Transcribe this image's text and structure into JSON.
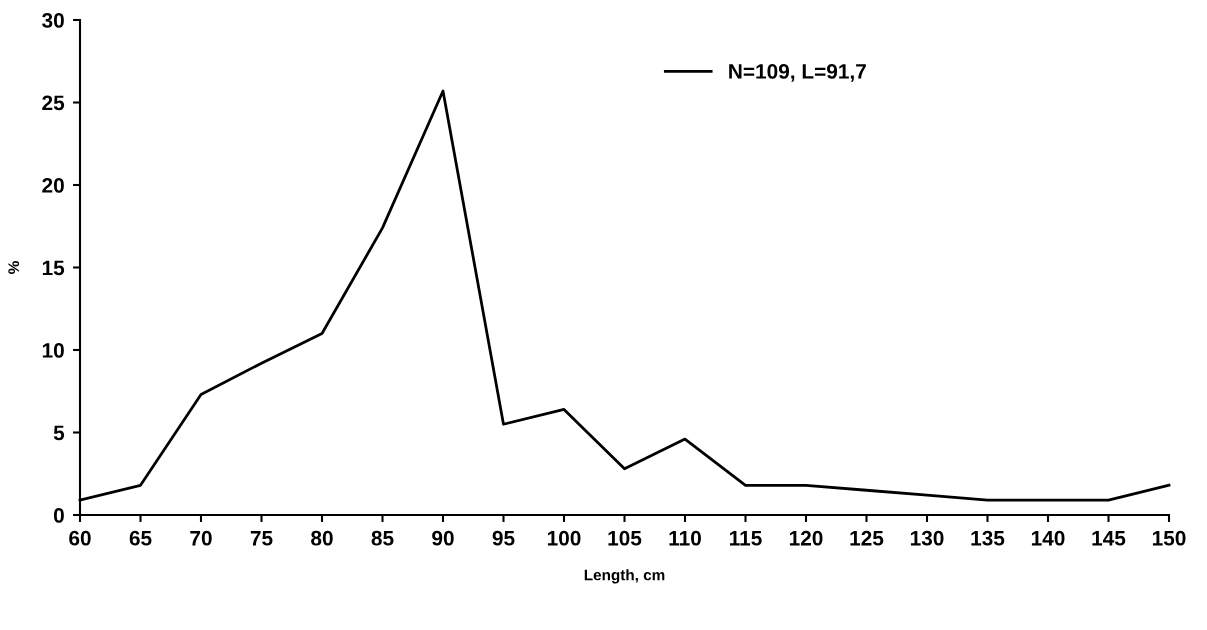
{
  "chart_data": {
    "type": "line",
    "xlabel": "Length, cm",
    "ylabel": "%",
    "x": [
      60,
      65,
      70,
      75,
      80,
      85,
      90,
      95,
      100,
      105,
      110,
      115,
      120,
      125,
      130,
      135,
      140,
      145,
      150
    ],
    "series": [
      {
        "name": "N=109, L=91,7",
        "color": "#000000",
        "values": [
          0.9,
          1.8,
          7.3,
          9.2,
          11.0,
          17.4,
          25.7,
          5.5,
          6.4,
          2.8,
          4.6,
          1.8,
          1.8,
          1.5,
          1.2,
          0.9,
          0.9,
          0.9,
          1.8
        ]
      }
    ],
    "xlim": [
      60,
      150
    ],
    "xticks": [
      60,
      65,
      70,
      75,
      80,
      85,
      90,
      95,
      100,
      105,
      110,
      115,
      120,
      125,
      130,
      135,
      140,
      145,
      150
    ],
    "ylim": [
      0,
      30
    ],
    "yticks": [
      0,
      5,
      10,
      15,
      20,
      25,
      30
    ],
    "grid": false,
    "legend": "top",
    "marker": "none",
    "line_style": "solid"
  }
}
